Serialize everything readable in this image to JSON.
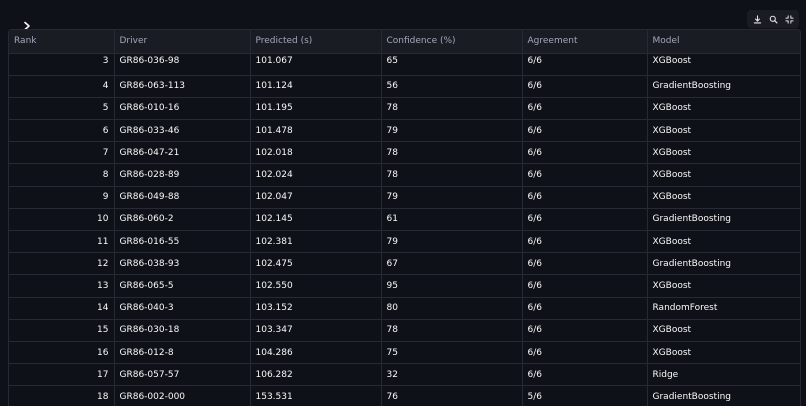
{
  "toolbar": {
    "icons": [
      "download-icon",
      "search-icon",
      "fullscreen-icon"
    ]
  },
  "table": {
    "columns": [
      "Rank",
      "Driver",
      "Predicted (s)",
      "Confidence (%)",
      "Agreement",
      "Model"
    ],
    "rows": [
      [
        "3",
        "GR86-036-98",
        "101.067",
        "65",
        "6/6",
        "XGBoost"
      ],
      [
        "4",
        "GR86-063-113",
        "101.124",
        "56",
        "6/6",
        "GradientBoosting"
      ],
      [
        "5",
        "GR86-010-16",
        "101.195",
        "78",
        "6/6",
        "XGBoost"
      ],
      [
        "6",
        "GR86-033-46",
        "101.478",
        "79",
        "6/6",
        "XGBoost"
      ],
      [
        "7",
        "GR86-047-21",
        "102.018",
        "78",
        "6/6",
        "XGBoost"
      ],
      [
        "8",
        "GR86-028-89",
        "102.024",
        "78",
        "6/6",
        "XGBoost"
      ],
      [
        "9",
        "GR86-049-88",
        "102.047",
        "79",
        "6/6",
        "XGBoost"
      ],
      [
        "10",
        "GR86-060-2",
        "102.145",
        "61",
        "6/6",
        "GradientBoosting"
      ],
      [
        "11",
        "GR86-016-55",
        "102.381",
        "79",
        "6/6",
        "XGBoost"
      ],
      [
        "12",
        "GR86-038-93",
        "102.475",
        "67",
        "6/6",
        "GradientBoosting"
      ],
      [
        "13",
        "GR86-065-5",
        "102.550",
        "95",
        "6/6",
        "XGBoost"
      ],
      [
        "14",
        "GR86-040-3",
        "103.152",
        "80",
        "6/6",
        "RandomForest"
      ],
      [
        "15",
        "GR86-030-18",
        "103.347",
        "78",
        "6/6",
        "XGBoost"
      ],
      [
        "16",
        "GR86-012-8",
        "104.286",
        "75",
        "6/6",
        "XGBoost"
      ],
      [
        "17",
        "GR86-057-57",
        "106.282",
        "32",
        "6/6",
        "Ridge"
      ],
      [
        "18",
        "GR86-002-000",
        "153.531",
        "76",
        "5/6",
        "GradientBoosting"
      ]
    ]
  }
}
